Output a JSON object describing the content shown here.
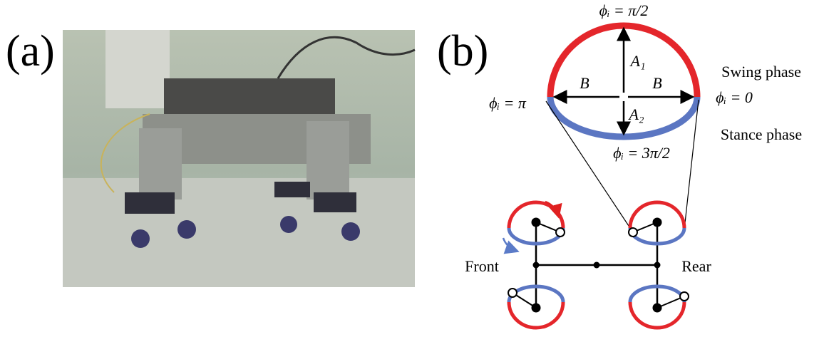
{
  "panel_a": {
    "label": "(a)"
  },
  "panel_b": {
    "label": "(b)",
    "phase_top": "ϕᵢ = π/2",
    "phase_left": "ϕᵢ = π",
    "phase_right": "ϕᵢ = 0",
    "phase_bottom": "ϕᵢ = 3π/2",
    "amp_up": "A₁",
    "amp_down": "A₂",
    "half_left": "B",
    "half_right": "B",
    "swing": "Swing phase",
    "stance": "Stance phase",
    "front": "Front",
    "rear": "Rear"
  }
}
